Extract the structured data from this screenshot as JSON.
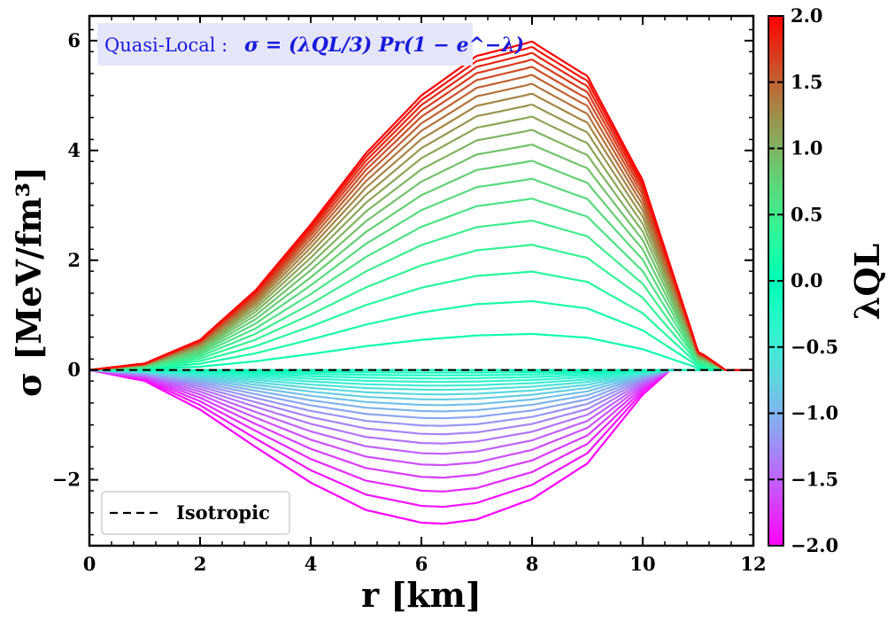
{
  "chart_data": {
    "type": "line",
    "xlabel": "r [km]",
    "ylabel": "σ [MeV/fm³]",
    "xlim": [
      0,
      12
    ],
    "ylim": [
      -3.2,
      6.45
    ],
    "x_ticks": [
      "0",
      "2",
      "4",
      "6",
      "8",
      "10",
      "12"
    ],
    "y_ticks": [
      "−2",
      "0",
      "2",
      "4",
      "6"
    ],
    "annotation": {
      "label": "Quasi-Local :",
      "formula": "σ = (λQL/3) Pr(1 − e^−λ)",
      "bg_color": "#e6e6fa",
      "text_color": "#1a1adb"
    },
    "legend": {
      "placement": "lower-left",
      "entries": [
        {
          "label": "Isotropic",
          "style": "dashed",
          "color": "#000000"
        }
      ]
    },
    "colorbar": {
      "label": "λQL",
      "colormap": "rainbow",
      "min": -2.0,
      "max": 2.0,
      "tick_labels": [
        "2.0",
        "1.5",
        "1.0",
        "0.5",
        "0.0",
        "−0.5",
        "−1.0",
        "−1.5",
        "−2.0"
      ]
    },
    "series_family": {
      "parameter": "λQL",
      "lambda_min": -2.0,
      "lambda_max": 2.0,
      "count": 41,
      "shape_positive": {
        "r": [
          0,
          1,
          2,
          3,
          4,
          5,
          6,
          7,
          8,
          9,
          10,
          10.5,
          11,
          11.5,
          12
        ],
        "sigma_at_lambda_2": [
          0,
          0.12,
          0.55,
          1.45,
          2.65,
          3.95,
          5.0,
          5.72,
          5.98,
          5.35,
          3.45,
          1.9,
          0.35,
          0.0,
          0
        ]
      },
      "shape_negative": {
        "r": [
          0,
          1,
          2,
          3,
          4,
          5,
          6,
          6.4,
          7,
          8,
          9,
          10,
          10.5,
          11,
          12
        ],
        "sigma_at_lambda_minus_2": [
          0,
          -0.2,
          -0.72,
          -1.4,
          -2.05,
          -2.55,
          -2.78,
          -2.8,
          -2.72,
          -2.35,
          -1.7,
          -0.45,
          0.0,
          0.0,
          0
        ]
      }
    },
    "isotropic_line": {
      "r": [
        0,
        12
      ],
      "sigma": [
        0,
        0
      ]
    }
  }
}
